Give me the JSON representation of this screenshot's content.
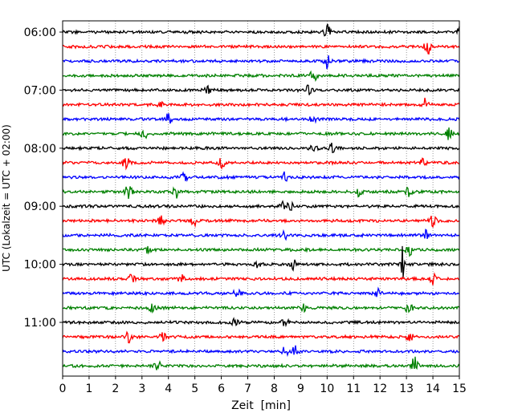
{
  "chart_data": {
    "type": "line",
    "xlabel": "Zeit  [min]",
    "ylabel": "UTC (Lokalzeit = UTC + 02:00)",
    "xlim": [
      0,
      15
    ],
    "x_ticks": [
      "0",
      "1",
      "2",
      "3",
      "4",
      "5",
      "6",
      "7",
      "8",
      "9",
      "10",
      "11",
      "12",
      "13",
      "14",
      "15"
    ],
    "y_ticks": [
      "06:00",
      "07:00",
      "08:00",
      "09:00",
      "10:00",
      "11:00"
    ],
    "grid": "vertical dotted at each minute",
    "traces_per_hour": 4,
    "minutes_per_trace": 15,
    "colors": [
      "#000000",
      "#ff0000",
      "#0000ff",
      "#008000"
    ],
    "traces": [
      {
        "start": "06:00",
        "color": "#000000",
        "events": [
          [
            10.0,
            1.0
          ],
          [
            15.0,
            1.8
          ]
        ]
      },
      {
        "start": "06:15",
        "color": "#ff0000",
        "events": [
          [
            13.8,
            1.0
          ]
        ]
      },
      {
        "start": "06:30",
        "color": "#0000ff",
        "events": [
          [
            10.0,
            1.0
          ]
        ]
      },
      {
        "start": "06:45",
        "color": "#008000",
        "events": [
          [
            9.5,
            1.0
          ]
        ]
      },
      {
        "start": "07:00",
        "color": "#000000",
        "events": [
          [
            5.5,
            0.8
          ],
          [
            9.3,
            0.6
          ]
        ]
      },
      {
        "start": "07:15",
        "color": "#ff0000",
        "events": [
          [
            3.7,
            0.8
          ],
          [
            13.7,
            0.8
          ]
        ]
      },
      {
        "start": "07:30",
        "color": "#0000ff",
        "events": [
          [
            4.0,
            0.9
          ],
          [
            9.5,
            0.7
          ]
        ]
      },
      {
        "start": "07:45",
        "color": "#008000",
        "events": [
          [
            3.1,
            0.7
          ],
          [
            14.6,
            1.0
          ]
        ]
      },
      {
        "start": "08:00",
        "color": "#000000",
        "events": [
          [
            9.5,
            0.7
          ],
          [
            10.2,
            0.8
          ]
        ]
      },
      {
        "start": "08:15",
        "color": "#ff0000",
        "events": [
          [
            2.4,
            0.9
          ],
          [
            6.0,
            0.7
          ],
          [
            13.6,
            0.8
          ]
        ]
      },
      {
        "start": "08:30",
        "color": "#0000ff",
        "events": [
          [
            4.6,
            0.6
          ],
          [
            8.4,
            0.7
          ]
        ]
      },
      {
        "start": "08:45",
        "color": "#008000",
        "events": [
          [
            2.5,
            1.0
          ],
          [
            4.3,
            0.8
          ],
          [
            11.2,
            0.7
          ],
          [
            13.1,
            0.6
          ]
        ]
      },
      {
        "start": "09:00",
        "color": "#000000",
        "events": [
          [
            8.3,
            0.6
          ],
          [
            8.6,
            0.7
          ]
        ]
      },
      {
        "start": "09:15",
        "color": "#ff0000",
        "events": [
          [
            3.7,
            0.7
          ],
          [
            5.0,
            0.8
          ],
          [
            14.0,
            0.8
          ]
        ]
      },
      {
        "start": "09:30",
        "color": "#0000ff",
        "events": [
          [
            8.4,
            0.7
          ],
          [
            13.7,
            0.7
          ]
        ]
      },
      {
        "start": "09:45",
        "color": "#008000",
        "events": [
          [
            3.2,
            0.5
          ],
          [
            13.1,
            0.8
          ]
        ]
      },
      {
        "start": "10:00",
        "color": "#000000",
        "events": [
          [
            7.4,
            0.5
          ],
          [
            8.7,
            0.7
          ],
          [
            12.85,
            3.8
          ]
        ]
      },
      {
        "start": "10:15",
        "color": "#ff0000",
        "events": [
          [
            2.6,
            0.6
          ],
          [
            4.5,
            0.7
          ],
          [
            14.0,
            0.7
          ]
        ]
      },
      {
        "start": "10:30",
        "color": "#0000ff",
        "events": [
          [
            6.6,
            0.7
          ],
          [
            11.9,
            0.6
          ]
        ]
      },
      {
        "start": "10:45",
        "color": "#008000",
        "events": [
          [
            3.4,
            0.7
          ],
          [
            9.1,
            0.6
          ],
          [
            13.1,
            0.8
          ]
        ]
      },
      {
        "start": "11:00",
        "color": "#000000",
        "events": [
          [
            6.5,
            0.6
          ],
          [
            8.4,
            0.7
          ]
        ]
      },
      {
        "start": "11:15",
        "color": "#ff0000",
        "events": [
          [
            2.5,
            0.8
          ],
          [
            3.8,
            0.7
          ],
          [
            13.1,
            0.8
          ]
        ]
      },
      {
        "start": "11:30",
        "color": "#0000ff",
        "events": [
          [
            8.4,
            0.7
          ],
          [
            8.8,
            0.8
          ]
        ]
      },
      {
        "start": "11:45",
        "color": "#008000",
        "events": [
          [
            13.3,
            1.2
          ],
          [
            3.6,
            0.6
          ]
        ]
      }
    ]
  }
}
